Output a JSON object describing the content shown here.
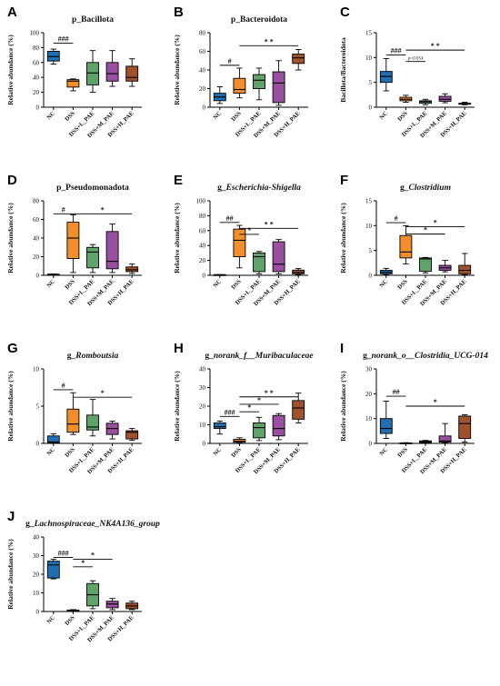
{
  "chart_data": [
    {
      "letter": "A",
      "title": "p_Bacillota",
      "italic": false,
      "type": "boxplot",
      "ylabel": "Relative abundance (%)",
      "ylim": [
        0,
        100
      ],
      "yticks": [
        0,
        20,
        40,
        60,
        80,
        100
      ],
      "categories": [
        "NC",
        "DSS",
        "DSS+L_PAE",
        "DSS+M_PAE",
        "DSS+H_PAE"
      ],
      "colors": [
        "#1f6fb2",
        "#f28e2b",
        "#5fa36a",
        "#9b4fa0",
        "#a0522d"
      ],
      "boxes": [
        {
          "min": 58,
          "q1": 62,
          "median": 68,
          "q3": 75,
          "max": 78
        },
        {
          "min": 22,
          "q1": 27,
          "median": 35,
          "q3": 37,
          "max": 38
        },
        {
          "min": 20,
          "q1": 30,
          "median": 46,
          "q3": 60,
          "max": 76
        },
        {
          "min": 28,
          "q1": 35,
          "median": 45,
          "q3": 60,
          "max": 76
        },
        {
          "min": 28,
          "q1": 35,
          "median": 40,
          "q3": 55,
          "max": 65
        }
      ],
      "significance": [
        {
          "label": "###",
          "from": 0,
          "to": 1,
          "y": 86
        }
      ]
    },
    {
      "letter": "B",
      "title": "p_Bacteroidota",
      "italic": false,
      "type": "boxplot",
      "ylabel": "Relative abundance (%)",
      "ylim": [
        0,
        80
      ],
      "yticks": [
        0,
        20,
        40,
        60,
        80
      ],
      "categories": [
        "NC",
        "DSS",
        "DSS+L_PAE",
        "DSS+M_PAE",
        "DSS+H_PAE"
      ],
      "colors": [
        "#1f6fb2",
        "#f28e2b",
        "#5fa36a",
        "#9b4fa0",
        "#a0522d"
      ],
      "boxes": [
        {
          "min": 4,
          "q1": 7,
          "median": 11,
          "q3": 15,
          "max": 22
        },
        {
          "min": 10,
          "q1": 15,
          "median": 19,
          "q3": 31,
          "max": 42
        },
        {
          "min": 8,
          "q1": 20,
          "median": 29,
          "q3": 35,
          "max": 42
        },
        {
          "min": 2,
          "q1": 5,
          "median": 26,
          "q3": 38,
          "max": 50
        },
        {
          "min": 40,
          "q1": 47,
          "median": 53,
          "q3": 57,
          "max": 62
        }
      ],
      "significance": [
        {
          "label": "#",
          "from": 0,
          "to": 1,
          "y": 45
        },
        {
          "label": "* *",
          "from": 1,
          "to": 4,
          "y": 66
        }
      ]
    },
    {
      "letter": "C",
      "title": "",
      "italic": false,
      "type": "boxplot",
      "ylabel": "Bacillota/Bacteroidota",
      "ylim": [
        0,
        15
      ],
      "yticks": [
        0,
        5,
        10,
        15
      ],
      "categories": [
        "NC",
        "DSS",
        "DSS+L_PAE",
        "DSS+M_PAE",
        "DSS+H_PAE"
      ],
      "colors": [
        "#1f6fb2",
        "#f28e2b",
        "#5fa36a",
        "#9b4fa0",
        "#a0522d"
      ],
      "boxes": [
        {
          "min": 3.3,
          "q1": 5,
          "median": 6.2,
          "q3": 7.2,
          "max": 9.8
        },
        {
          "min": 1,
          "q1": 1.3,
          "median": 1.6,
          "q3": 2,
          "max": 2.4
        },
        {
          "min": 0.5,
          "q1": 0.8,
          "median": 1.1,
          "q3": 1.3,
          "max": 1.6
        },
        {
          "min": 0.9,
          "q1": 1.2,
          "median": 1.6,
          "q3": 2.2,
          "max": 2.7
        },
        {
          "min": 0.5,
          "q1": 0.6,
          "median": 0.7,
          "q3": 0.8,
          "max": 1
        }
      ],
      "significance": [
        {
          "label": "###",
          "from": 0,
          "to": 1,
          "y": 10.5
        },
        {
          "label": "p=0.054",
          "from": 1,
          "to": 2,
          "y": 9.2,
          "small": true
        },
        {
          "label": "* *",
          "from": 1,
          "to": 4,
          "y": 11.5
        }
      ]
    },
    {
      "letter": "D",
      "title": "p_Pseudomonadota",
      "italic": false,
      "type": "boxplot",
      "ylabel": "Relative abundance (%)",
      "ylim": [
        0,
        80
      ],
      "yticks": [
        0,
        20,
        40,
        60,
        80
      ],
      "categories": [
        "NC",
        "DSS",
        "DSS+L_PAE",
        "DSS+M_PAE",
        "DSS+H_PAE"
      ],
      "colors": [
        "#1f6fb2",
        "#f28e2b",
        "#5fa36a",
        "#9b4fa0",
        "#a0522d"
      ],
      "boxes": [
        {
          "min": 0.5,
          "q1": 0.8,
          "median": 1,
          "q3": 1.2,
          "max": 1.5
        },
        {
          "min": 3,
          "q1": 18,
          "median": 40,
          "q3": 57,
          "max": 65
        },
        {
          "min": 3,
          "q1": 8,
          "median": 25,
          "q3": 30,
          "max": 33
        },
        {
          "min": 3,
          "q1": 7,
          "median": 15,
          "q3": 47,
          "max": 55
        },
        {
          "min": 2,
          "q1": 4,
          "median": 6,
          "q3": 9,
          "max": 12
        }
      ],
      "significance": [
        {
          "label": "#",
          "from": 0,
          "to": 1,
          "y": 66
        },
        {
          "label": "*",
          "from": 1,
          "to": 4,
          "y": 66
        }
      ]
    },
    {
      "letter": "E",
      "title": "g_Escherichia-Shigella",
      "italic": true,
      "type": "boxplot",
      "ylabel": "Relative abundance (%)",
      "ylim": [
        0,
        100
      ],
      "yticks": [
        0,
        20,
        40,
        60,
        80,
        100
      ],
      "categories": [
        "NC",
        "DSS",
        "DSS+L_PAE",
        "DSS+M_PAE",
        "DSS+H_PAE"
      ],
      "colors": [
        "#1f6fb2",
        "#f28e2b",
        "#5fa36a",
        "#9b4fa0",
        "#a0522d"
      ],
      "boxes": [
        {
          "min": 0.3,
          "q1": 0.5,
          "median": 0.7,
          "q3": 0.9,
          "max": 1
        },
        {
          "min": 10,
          "q1": 25,
          "median": 47,
          "q3": 62,
          "max": 67
        },
        {
          "min": 2,
          "q1": 5,
          "median": 25,
          "q3": 30,
          "max": 32
        },
        {
          "min": 2,
          "q1": 5,
          "median": 15,
          "q3": 45,
          "max": 48
        },
        {
          "min": 1,
          "q1": 2,
          "median": 4,
          "q3": 7,
          "max": 9
        }
      ],
      "significance": [
        {
          "label": "##",
          "from": 0,
          "to": 1,
          "y": 71
        },
        {
          "label": "*",
          "from": 1,
          "to": 2,
          "y": 55
        },
        {
          "label": "* *",
          "from": 1,
          "to": 4,
          "y": 63
        }
      ]
    },
    {
      "letter": "F",
      "title": "g_Clostridium",
      "italic": true,
      "type": "boxplot",
      "ylabel": "Relative abundance (%)",
      "ylim": [
        0,
        15
      ],
      "yticks": [
        0,
        5,
        10,
        15
      ],
      "categories": [
        "NC",
        "DSS",
        "DSS+L_PAE",
        "DSS+M_PAE",
        "DSS+H_PAE"
      ],
      "colors": [
        "#1f6fb2",
        "#f28e2b",
        "#5fa36a",
        "#9b4fa0",
        "#a0522d"
      ],
      "boxes": [
        {
          "min": 0.1,
          "q1": 0.3,
          "median": 0.6,
          "q3": 1,
          "max": 1.4
        },
        {
          "min": 2.3,
          "q1": 3.5,
          "median": 4.7,
          "q3": 8,
          "max": 10
        },
        {
          "min": 0.5,
          "q1": 0.8,
          "median": 3.3,
          "q3": 3.5,
          "max": 3.6
        },
        {
          "min": 0.7,
          "q1": 1,
          "median": 1.5,
          "q3": 2,
          "max": 3
        },
        {
          "min": 0.1,
          "q1": 0.3,
          "median": 1,
          "q3": 2,
          "max": 4.4
        }
      ],
      "significance": [
        {
          "label": "#",
          "from": 0,
          "to": 1,
          "y": 10.6
        },
        {
          "label": "*",
          "from": 1,
          "to": 3,
          "y": 8.3
        },
        {
          "label": "*",
          "from": 1,
          "to": 4,
          "y": 9.8
        }
      ]
    },
    {
      "letter": "G",
      "title": "g_Romboutsia",
      "italic": true,
      "type": "boxplot",
      "ylabel": "Relative abundance (%)",
      "ylim": [
        0,
        10
      ],
      "yticks": [
        0,
        5,
        10
      ],
      "categories": [
        "NC",
        "DSS",
        "DSS+L_PAE",
        "DSS+M_PAE",
        "DSS+H_PAE"
      ],
      "colors": [
        "#1f6fb2",
        "#f28e2b",
        "#5fa36a",
        "#9b4fa0",
        "#a0522d"
      ],
      "boxes": [
        {
          "min": 0,
          "q1": 0.1,
          "median": 0.2,
          "q3": 1,
          "max": 1.3
        },
        {
          "min": 1.2,
          "q1": 1.5,
          "median": 2.6,
          "q3": 4.6,
          "max": 6.8
        },
        {
          "min": 1,
          "q1": 1.8,
          "median": 2.2,
          "q3": 3.8,
          "max": 5.9
        },
        {
          "min": 0.6,
          "q1": 1.2,
          "median": 2,
          "q3": 2.7,
          "max": 3
        },
        {
          "min": 0.4,
          "q1": 0.6,
          "median": 1.5,
          "q3": 1.7,
          "max": 2
        }
      ],
      "significance": [
        {
          "label": "#",
          "from": 0,
          "to": 1,
          "y": 7.2
        },
        {
          "label": "*",
          "from": 1,
          "to": 4,
          "y": 6.2
        }
      ]
    },
    {
      "letter": "H",
      "title": "g_norank_f__Muribaculaceae",
      "italic": true,
      "type": "boxplot",
      "ylabel": "Relative abundance (%)",
      "ylim": [
        0,
        40
      ],
      "yticks": [
        0,
        10,
        20,
        30,
        40
      ],
      "categories": [
        "NC",
        "DSS",
        "DSS+L_PAE",
        "DSS+M_PAE",
        "DSS+H_PAE"
      ],
      "colors": [
        "#1f6fb2",
        "#f28e2b",
        "#5fa36a",
        "#9b4fa0",
        "#a0522d"
      ],
      "boxes": [
        {
          "min": 5,
          "q1": 8,
          "median": 9,
          "q3": 11,
          "max": 12
        },
        {
          "min": 0.3,
          "q1": 0.6,
          "median": 1.2,
          "q3": 2.2,
          "max": 3
        },
        {
          "min": 1.5,
          "q1": 3,
          "median": 8.5,
          "q3": 11,
          "max": 14
        },
        {
          "min": 2,
          "q1": 4,
          "median": 8,
          "q3": 15,
          "max": 16
        },
        {
          "min": 11,
          "q1": 13,
          "median": 19,
          "q3": 23,
          "max": 27
        }
      ],
      "significance": [
        {
          "label": "###",
          "from": 0,
          "to": 1,
          "y": 14.5
        },
        {
          "label": "*",
          "from": 1,
          "to": 2,
          "y": 17
        },
        {
          "label": "*",
          "from": 1,
          "to": 3,
          "y": 21
        },
        {
          "label": "* *",
          "from": 1,
          "to": 4,
          "y": 25
        }
      ]
    },
    {
      "letter": "I",
      "title": "g_norank_o__Clostridia_UCG-014",
      "italic": true,
      "type": "boxplot",
      "ylabel": "Relative abundance (%)",
      "ylim": [
        0,
        30
      ],
      "yticks": [
        0,
        10,
        20,
        30
      ],
      "categories": [
        "NC",
        "DSS",
        "DSS+L_PAE",
        "DSS+M_PAE",
        "DSS+H_PAE"
      ],
      "colors": [
        "#1f6fb2",
        "#f28e2b",
        "#5fa36a",
        "#9b4fa0",
        "#a0522d"
      ],
      "boxes": [
        {
          "min": 2,
          "q1": 4,
          "median": 6,
          "q3": 10,
          "max": 17
        },
        {
          "min": 0,
          "q1": 0.05,
          "median": 0.1,
          "q3": 0.2,
          "max": 0.3
        },
        {
          "min": 0.1,
          "q1": 0.3,
          "median": 0.7,
          "q3": 1,
          "max": 1.2
        },
        {
          "min": 0.2,
          "q1": 0.5,
          "median": 1,
          "q3": 3,
          "max": 8
        },
        {
          "min": 0.5,
          "q1": 2,
          "median": 8,
          "q3": 11,
          "max": 11.5
        }
      ],
      "significance": [
        {
          "label": "##",
          "from": 0,
          "to": 1,
          "y": 19
        },
        {
          "label": "*",
          "from": 1,
          "to": 4,
          "y": 15
        }
      ]
    },
    {
      "letter": "J",
      "title": "g_Lachnospiraceae_NK4A136_group",
      "italic": true,
      "type": "boxplot",
      "ylabel": "Relative abundance (%)",
      "ylim": [
        0,
        40
      ],
      "yticks": [
        0,
        10,
        20,
        30,
        40
      ],
      "categories": [
        "NC",
        "DSS",
        "DSS+L_PAE",
        "DSS+M_PAE",
        "DSS+H_PAE"
      ],
      "colors": [
        "#1f6fb2",
        "#f28e2b",
        "#5fa36a",
        "#9b4fa0",
        "#a0522d"
      ],
      "boxes": [
        {
          "min": 17.5,
          "q1": 18,
          "median": 25,
          "q3": 27,
          "max": 28
        },
        {
          "min": 0.1,
          "q1": 0.2,
          "median": 0.5,
          "q3": 0.8,
          "max": 1
        },
        {
          "min": 1.5,
          "q1": 3,
          "median": 9,
          "q3": 15,
          "max": 16.5
        },
        {
          "min": 1,
          "q1": 2,
          "median": 4,
          "q3": 5.5,
          "max": 7
        },
        {
          "min": 1,
          "q1": 1.5,
          "median": 3,
          "q3": 4.5,
          "max": 5.5
        }
      ],
      "significance": [
        {
          "label": "###",
          "from": 0,
          "to": 1,
          "y": 29
        },
        {
          "label": "*",
          "from": 1,
          "to": 2,
          "y": 24
        },
        {
          "label": "*",
          "from": 1,
          "to": 3,
          "y": 28
        }
      ]
    }
  ]
}
